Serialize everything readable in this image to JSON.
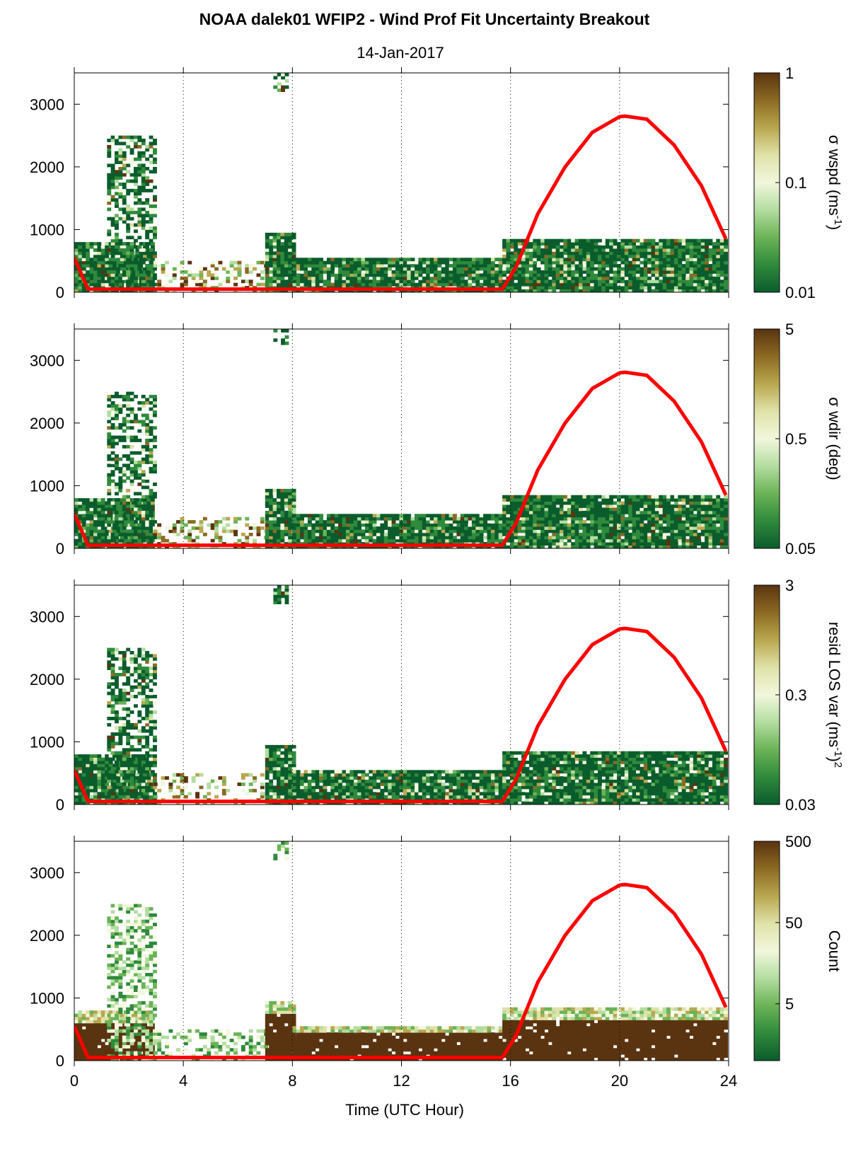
{
  "figure": {
    "title": "NOAA dalek01 WFIP2 - Wind Prof Fit Uncertainty Breakout",
    "date": "14-Jan-2017",
    "xlabel": "Time (UTC Hour)"
  },
  "colors": {
    "sun_line": "#ff0000",
    "grid": "#000000",
    "colormap": [
      "#0b5c2c",
      "#2f8a3c",
      "#6bb356",
      "#b3dda0",
      "#f2f7dd",
      "#dfe2a8",
      "#b9a74f",
      "#8c6a23",
      "#5a3410"
    ]
  },
  "chart_data": [
    {
      "type": "heatmap",
      "variable": "σ wspd (ms⁻¹)",
      "cb_label_parts": [
        "σ wspd (ms",
        "-1",
        ")"
      ],
      "cb_scale": "log",
      "cb_range": [
        0.01,
        1
      ],
      "cb_ticks": [
        {
          "v": 1,
          "label": "1"
        },
        {
          "v": 0.1,
          "label": "0.1"
        },
        {
          "v": 0.01,
          "label": "0.01"
        }
      ],
      "ylim": [
        0,
        3500
      ],
      "yticks": [
        0,
        1000,
        2000,
        3000
      ],
      "xlim": [
        0,
        24
      ],
      "xticks": [
        0,
        4,
        8,
        12,
        16,
        20,
        24
      ],
      "grid": "vertical dotted"
    },
    {
      "type": "heatmap",
      "variable": "σ wdir (deg)",
      "cb_label_parts": [
        "σ wdir (deg)"
      ],
      "cb_scale": "log",
      "cb_range": [
        0.05,
        5
      ],
      "cb_ticks": [
        {
          "v": 5,
          "label": "5"
        },
        {
          "v": 0.5,
          "label": "0.5"
        },
        {
          "v": 0.05,
          "label": "0.05"
        }
      ],
      "ylim": [
        0,
        3500
      ],
      "yticks": [
        0,
        1000,
        2000,
        3000
      ],
      "xlim": [
        0,
        24
      ],
      "xticks": [
        0,
        4,
        8,
        12,
        16,
        20,
        24
      ],
      "grid": "vertical dotted"
    },
    {
      "type": "heatmap",
      "variable": "resid LOS var (ms⁻¹)²",
      "cb_label_parts": [
        "resid LOS var (ms",
        "-1",
        ")",
        "2"
      ],
      "cb_scale": "log",
      "cb_range": [
        0.03,
        3
      ],
      "cb_ticks": [
        {
          "v": 3,
          "label": "3"
        },
        {
          "v": 0.3,
          "label": "0.3"
        },
        {
          "v": 0.03,
          "label": "0.03"
        }
      ],
      "ylim": [
        0,
        3500
      ],
      "yticks": [
        0,
        1000,
        2000,
        3000
      ],
      "xlim": [
        0,
        24
      ],
      "xticks": [
        0,
        4,
        8,
        12,
        16,
        20,
        24
      ],
      "grid": "vertical dotted"
    },
    {
      "type": "heatmap",
      "variable": "Count",
      "cb_label_parts": [
        "Count"
      ],
      "cb_scale": "log",
      "cb_range": [
        1,
        500
      ],
      "cb_ticks": [
        {
          "v": 500,
          "label": "500"
        },
        {
          "v": 50,
          "label": "50"
        },
        {
          "v": 5,
          "label": "5"
        }
      ],
      "ylim": [
        0,
        3500
      ],
      "yticks": [
        0,
        1000,
        2000,
        3000
      ],
      "xlim": [
        0,
        24
      ],
      "xticks": [
        0,
        4,
        8,
        12,
        16,
        20,
        24
      ],
      "xtick_labels_shown": true,
      "grid": "vertical dotted"
    }
  ],
  "sun_elevation_line": {
    "x": [
      0,
      0.5,
      15.7,
      16.2,
      17,
      18,
      19,
      20,
      20.2,
      21,
      22,
      23,
      23.9
    ],
    "y": [
      550,
      50,
      50,
      400,
      1250,
      2000,
      2550,
      2800,
      2810,
      2760,
      2350,
      1700,
      850
    ]
  },
  "data_fill_summary": [
    {
      "x0": 0,
      "x1": 2.9,
      "ytop": 800,
      "level": "low"
    },
    {
      "x0": 1.2,
      "x1": 2.9,
      "ytop": 2500,
      "level": "patchy"
    },
    {
      "x0": 2.9,
      "x1": 7.0,
      "ytop": 500,
      "level": "sparse"
    },
    {
      "x0": 7.0,
      "x1": 8.0,
      "ytop": 950,
      "level": "low"
    },
    {
      "x0": 7.3,
      "x1": 7.8,
      "y0": 3200,
      "ytop": 3500,
      "level": "patchy"
    },
    {
      "x0": 8.0,
      "x1": 15.7,
      "ytop": 550,
      "level": "low"
    },
    {
      "x0": 15.7,
      "x1": 23.9,
      "ytop": 850,
      "level": "low"
    }
  ]
}
